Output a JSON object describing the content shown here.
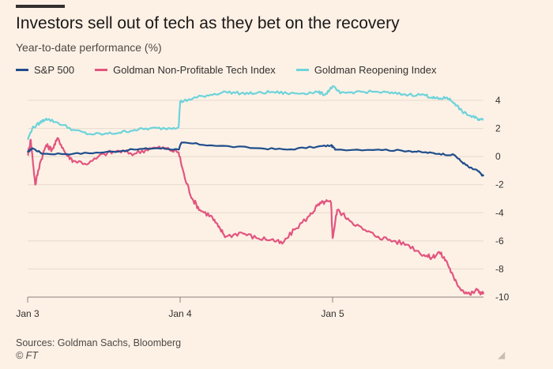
{
  "header": {
    "title": "Investors sell out of tech as they bet on the recovery",
    "subtitle": "Year-to-date performance (%)"
  },
  "footer": {
    "source": "Sources: Goldman Sachs, Bloomberg",
    "credit": "© FT"
  },
  "chart_data": {
    "type": "line",
    "ylim": [
      -10,
      4.5
    ],
    "yticks": [
      "4",
      "2",
      "0",
      "-2",
      "-4",
      "-6",
      "-8",
      "-10"
    ],
    "yticks_values": [
      4,
      2,
      0,
      -2,
      -4,
      -6,
      -8,
      -10
    ],
    "x_tick_labels": [
      "Jan 3",
      "Jan 4",
      "Jan 5"
    ],
    "x_tick_values": [
      0,
      1,
      2
    ],
    "xlim": [
      0,
      3
    ],
    "grid": true,
    "legend_placement": "top-left",
    "series": [
      {
        "name": "S&P 500",
        "color": "#1f4e8c",
        "x": [
          0,
          0.03,
          0.1,
          0.3,
          0.5,
          0.7,
          0.85,
          0.99,
          1.01,
          1.2,
          1.5,
          1.7,
          1.9,
          1.99,
          2.02,
          2.3,
          2.5,
          2.6,
          2.7,
          2.8,
          2.85,
          2.9,
          2.95,
          2.99
        ],
        "values": [
          0.3,
          0.6,
          0.2,
          0.2,
          0.3,
          0.5,
          0.6,
          0.5,
          1.0,
          0.8,
          0.6,
          0.5,
          0.7,
          0.8,
          0.5,
          0.5,
          0.4,
          0.3,
          0.2,
          0.1,
          -0.4,
          -0.8,
          -1.0,
          -1.4
        ]
      },
      {
        "name": "Goldman Non-Profitable Tech Index",
        "color": "#e2557f",
        "x": [
          0,
          0.02,
          0.05,
          0.08,
          0.12,
          0.16,
          0.2,
          0.25,
          0.3,
          0.4,
          0.5,
          0.6,
          0.7,
          0.8,
          0.9,
          0.99,
          1.03,
          1.08,
          1.13,
          1.2,
          1.25,
          1.3,
          1.4,
          1.5,
          1.6,
          1.67,
          1.75,
          1.85,
          1.9,
          1.95,
          1.99,
          2.0,
          2.03,
          2.1,
          2.2,
          2.3,
          2.4,
          2.5,
          2.6,
          2.65,
          2.7,
          2.75,
          2.8,
          2.85,
          2.9,
          2.95,
          2.99
        ],
        "values": [
          0.1,
          1.2,
          -2.0,
          -0.5,
          0.8,
          0.5,
          1.3,
          0.2,
          -0.3,
          -0.5,
          0.2,
          0.4,
          0.2,
          0.6,
          0.6,
          0.3,
          -1.5,
          -3.0,
          -3.8,
          -4.2,
          -5.0,
          -5.7,
          -5.4,
          -5.8,
          -5.9,
          -6.2,
          -5.2,
          -4.2,
          -3.5,
          -3.2,
          -3.3,
          -5.8,
          -3.8,
          -4.4,
          -5.2,
          -5.7,
          -6.0,
          -6.3,
          -7.0,
          -7.2,
          -6.8,
          -7.5,
          -8.8,
          -9.5,
          -9.8,
          -9.5,
          -9.8
        ]
      },
      {
        "name": "Goldman Reopening Index",
        "color": "#6dd3da",
        "x": [
          0,
          0.03,
          0.08,
          0.12,
          0.2,
          0.3,
          0.4,
          0.5,
          0.6,
          0.7,
          0.8,
          0.9,
          0.99,
          1.0,
          1.05,
          1.1,
          1.2,
          1.3,
          1.4,
          1.5,
          1.6,
          1.7,
          1.8,
          1.9,
          1.95,
          2.0,
          2.05,
          2.15,
          2.3,
          2.4,
          2.5,
          2.6,
          2.65,
          2.7,
          2.75,
          2.8,
          2.85,
          2.9,
          2.95,
          2.99
        ],
        "values": [
          1.2,
          2.0,
          2.4,
          2.7,
          2.4,
          1.9,
          1.6,
          1.6,
          1.7,
          1.9,
          2.0,
          2.0,
          2.1,
          3.9,
          4.0,
          4.2,
          4.4,
          4.6,
          4.5,
          4.5,
          4.6,
          4.5,
          4.5,
          4.6,
          4.4,
          5.0,
          4.5,
          4.6,
          4.6,
          4.5,
          4.4,
          4.4,
          4.2,
          4.1,
          4.2,
          3.8,
          3.2,
          2.9,
          2.7,
          2.6
        ]
      }
    ]
  }
}
